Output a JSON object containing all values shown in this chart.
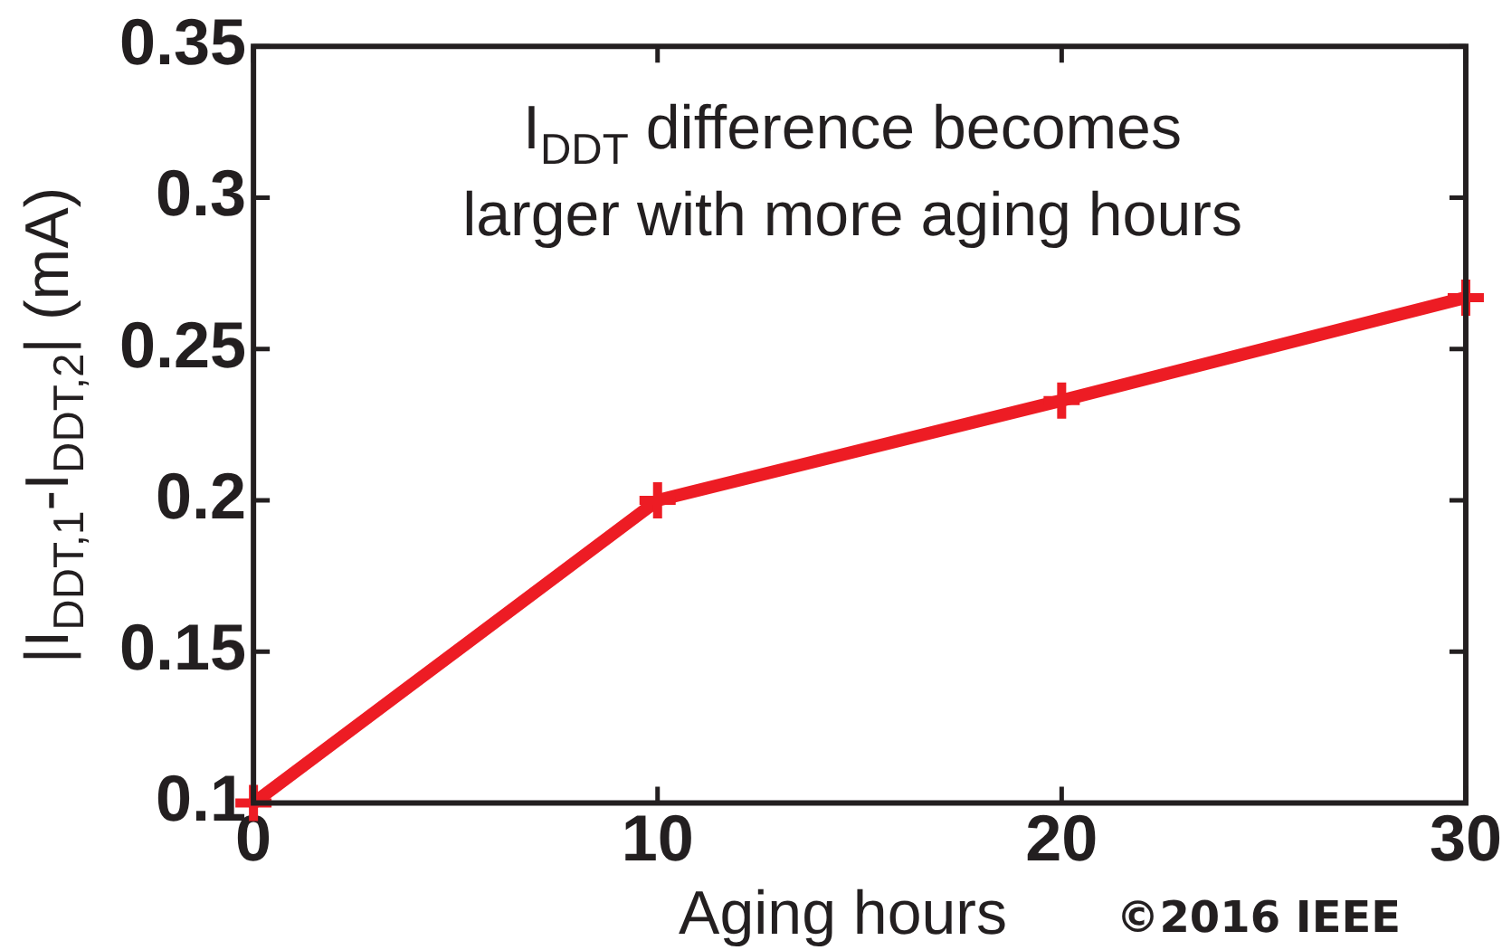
{
  "chart_data": {
    "type": "line",
    "xlabel": "Aging hours",
    "ylabel": "|I$_{DDT,1}$-I$_{DDT,2}$| (mA)",
    "annotations": [
      "I$_{DDT}$ difference becomes\nlarger with more aging hours",
      "©2016 IEEE"
    ],
    "x": [
      0,
      10,
      20,
      30
    ],
    "values": [
      0.1,
      0.2,
      0.233,
      0.267
    ],
    "color": "#ed1c24",
    "marker": "cross",
    "line_style": "solid",
    "xlim": [
      0,
      30
    ],
    "xticks": [
      0,
      10,
      20,
      30
    ],
    "ylim": [
      0.1,
      0.35
    ],
    "yticks": [
      0.1,
      0.15,
      0.2,
      0.25,
      0.3,
      0.35
    ],
    "grid": false,
    "legend": false
  }
}
